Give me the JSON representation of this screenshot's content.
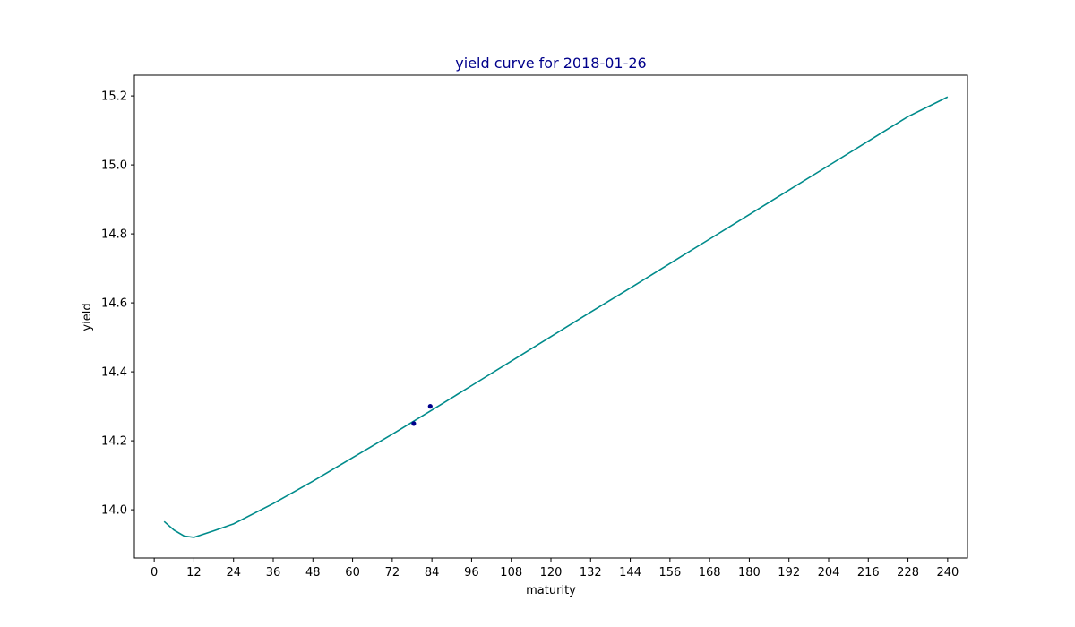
{
  "chart_data": {
    "type": "line",
    "title": "yield curve for 2018-01-26",
    "xlabel": "maturity",
    "ylabel": "yield",
    "xlim": [
      -6,
      246
    ],
    "ylim": [
      13.86,
      15.26
    ],
    "xticks": [
      0,
      12,
      24,
      36,
      48,
      60,
      72,
      84,
      96,
      108,
      120,
      132,
      144,
      156,
      168,
      180,
      192,
      204,
      216,
      228,
      240
    ],
    "yticks": [
      14.0,
      14.2,
      14.4,
      14.6,
      14.8,
      15.0,
      15.2
    ],
    "ytick_labels": [
      "14.0",
      "14.2",
      "14.4",
      "14.6",
      "14.8",
      "15.0",
      "15.2"
    ],
    "grid": false,
    "series": [
      {
        "kind": "line",
        "x": [
          3,
          6,
          9,
          12,
          18,
          24,
          36,
          48,
          60,
          72,
          84,
          96,
          108,
          120,
          132,
          144,
          156,
          168,
          180,
          192,
          204,
          216,
          228,
          240
        ],
        "y": [
          13.966,
          13.941,
          13.924,
          13.92,
          13.939,
          13.959,
          14.018,
          14.083,
          14.151,
          14.219,
          14.289,
          14.36,
          14.431,
          14.502,
          14.573,
          14.643,
          14.714,
          14.785,
          14.856,
          14.927,
          14.998,
          15.069,
          15.14,
          15.197
        ]
      },
      {
        "kind": "scatter",
        "x": [
          78.5,
          83.5
        ],
        "y": [
          14.25,
          14.3
        ]
      }
    ],
    "colors": {
      "line": "#008b8b",
      "points": "#00008b",
      "title": "#00008b"
    }
  }
}
